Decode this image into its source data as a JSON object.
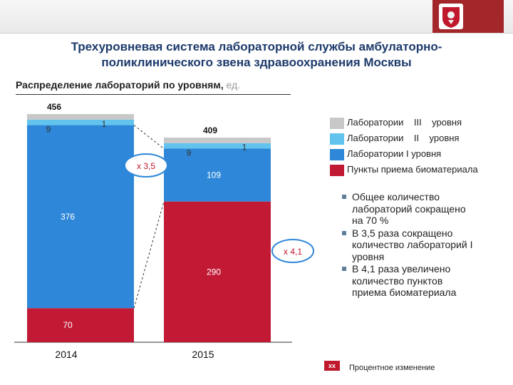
{
  "title": "Трехуровневая система лабораторной службы амбулаторно-поликлинического звена здравоохранения Москвы",
  "subtitle": {
    "text": "Распределение лабораторий по уровням,",
    "unit": "ед."
  },
  "colors": {
    "level3": "#c8c8c8",
    "level2": "#62c3ec",
    "level1": "#2e87d8",
    "points": "#c21a35",
    "badge": "#c0182d",
    "ring": "#2e87d8"
  },
  "chart_data": {
    "type": "bar",
    "stacked": true,
    "categories": [
      "2014",
      "2015"
    ],
    "series": [
      {
        "name": "Пункты приема биоматериала",
        "values": [
          70,
          290
        ],
        "color": "#c21a35"
      },
      {
        "name": "Лаборатории I уровня",
        "values": [
          376,
          109
        ],
        "color": "#2e87d8"
      },
      {
        "name": "Лаборатории II уровня",
        "values": [
          9,
          9
        ],
        "color": "#62c3ec"
      },
      {
        "name": "Лаборатории III уровня",
        "values": [
          1,
          1
        ],
        "color": "#c8c8c8"
      }
    ],
    "totals": [
      456,
      409
    ],
    "labels": [
      [
        "70",
        "376",
        "9",
        "1"
      ],
      [
        "290",
        "109",
        "9",
        "1"
      ]
    ],
    "annotations": [
      {
        "text": "x 3,5",
        "series": "Лаборатории I уровня"
      },
      {
        "text": "x 4,1",
        "series": "Пункты приема биоматериала"
      }
    ],
    "ylim": [
      0,
      456
    ]
  },
  "legend": [
    {
      "label": "Лаборатории    III    уровня",
      "color": "#c8c8c8"
    },
    {
      "label": "Лаборатории    II    уровня",
      "color": "#62c3ec"
    },
    {
      "label": "Лаборатории I уровня",
      "color": "#2e87d8"
    },
    {
      "label": "Пункты приема биоматериала",
      "color": "#c21a35"
    }
  ],
  "notes": [
    "Общее количество лабораторий сокращено на 70 %",
    "В 3,5 раза сокращено количество лабораторий I уровня",
    "В 4,1 раза увеличено количество пунктов приема биоматериала"
  ],
  "footer": {
    "badge": "xx",
    "label": "Процентное изменение"
  }
}
